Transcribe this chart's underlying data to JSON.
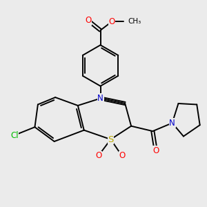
{
  "bg_color": "#ebebeb",
  "bond_color": "#000000",
  "bond_width": 1.4,
  "atom_colors": {
    "O": "#ff0000",
    "N": "#0000cc",
    "S": "#bbaa00",
    "Cl": "#00bb00",
    "C": "#000000"
  },
  "font_size": 8.5
}
